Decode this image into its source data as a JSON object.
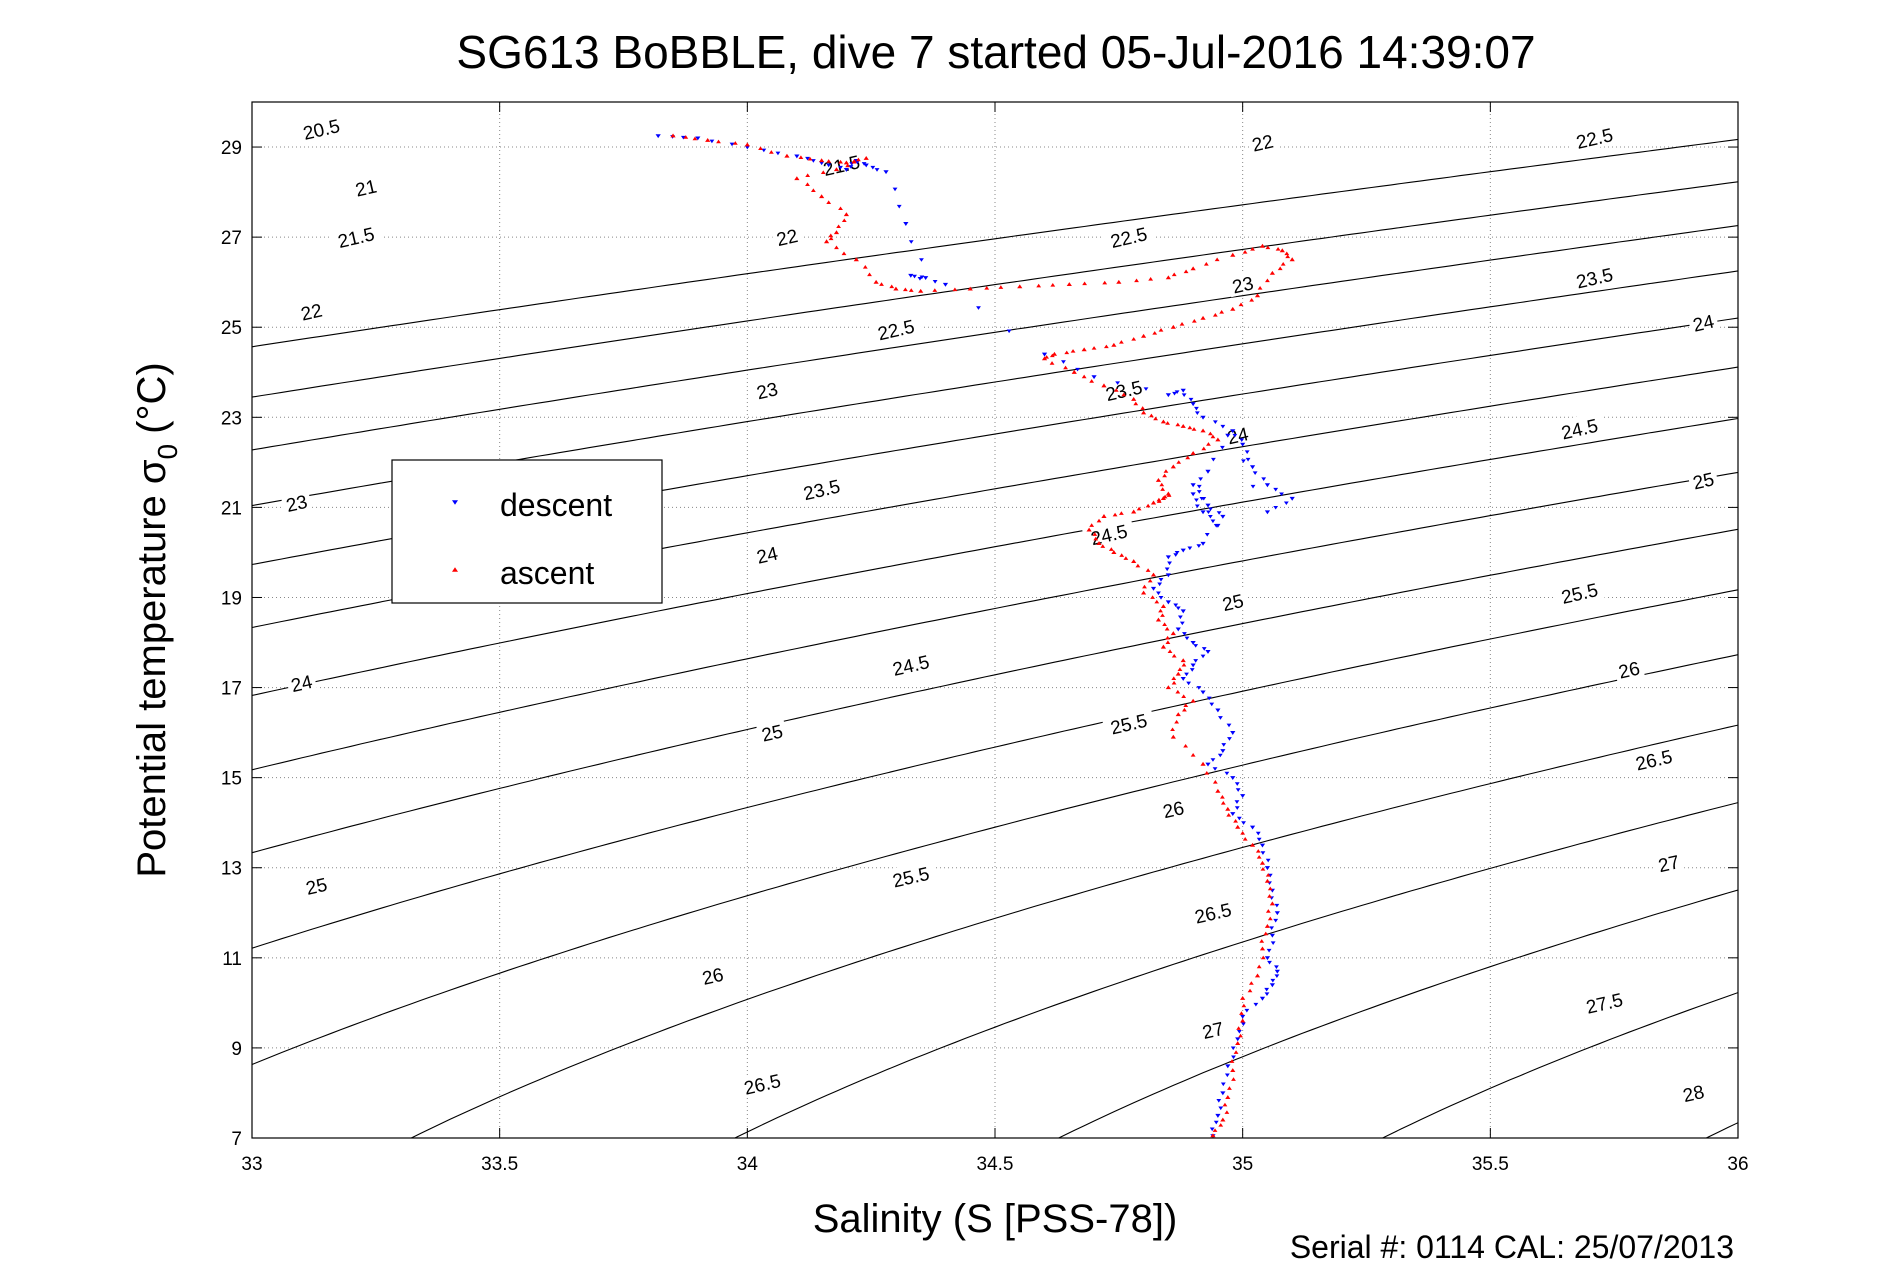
{
  "chart_data": {
    "type": "scatter",
    "title": "SG613 BoBBLE, dive 7 started 05-Jul-2016 14:39:07",
    "xlabel": "Salinity (S [PSS-78])",
    "ylabel_main": "Potential temperature σ",
    "ylabel_sub": "0",
    "ylabel_unit": "(°C)",
    "xlim": [
      33,
      36
    ],
    "ylim": [
      7,
      30
    ],
    "grid": true,
    "xticks": [
      {
        "value": 33,
        "label": "33"
      },
      {
        "value": 33.5,
        "label": "33.5"
      },
      {
        "value": 34,
        "label": "34"
      },
      {
        "value": 34.5,
        "label": "34.5"
      },
      {
        "value": 35,
        "label": "35"
      },
      {
        "value": 35.5,
        "label": "35.5"
      },
      {
        "value": 36,
        "label": "36"
      }
    ],
    "yticks": [
      {
        "value": 7,
        "label": "7"
      },
      {
        "value": 9,
        "label": "9"
      },
      {
        "value": 11,
        "label": "11"
      },
      {
        "value": 13,
        "label": "13"
      },
      {
        "value": 15,
        "label": "15"
      },
      {
        "value": 17,
        "label": "17"
      },
      {
        "value": 19,
        "label": "19"
      },
      {
        "value": 21,
        "label": "21"
      },
      {
        "value": 23,
        "label": "23"
      },
      {
        "value": 25,
        "label": "25"
      },
      {
        "value": 27,
        "label": "27"
      },
      {
        "value": 29,
        "label": "29"
      }
    ],
    "density_contours": {
      "levels": [
        20.5,
        21,
        21.5,
        22,
        22.5,
        23,
        23.5,
        24,
        24.5,
        25,
        25.5,
        26,
        26.5,
        27,
        27.5,
        28
      ],
      "color": "#000000",
      "labels": [
        {
          "text": "20.5",
          "x": 33.14,
          "y": 29.4
        },
        {
          "text": "21",
          "x": 33.23,
          "y": 28.1
        },
        {
          "text": "21.5",
          "x": 33.21,
          "y": 27.0
        },
        {
          "text": "22",
          "x": 33.12,
          "y": 25.35
        },
        {
          "text": "23",
          "x": 33.09,
          "y": 21.1
        },
        {
          "text": "24",
          "x": 33.1,
          "y": 17.1
        },
        {
          "text": "25",
          "x": 33.13,
          "y": 12.6
        },
        {
          "text": "21.5",
          "x": 34.19,
          "y": 28.6
        },
        {
          "text": "22",
          "x": 34.08,
          "y": 27.0
        },
        {
          "text": "22.5",
          "x": 34.3,
          "y": 24.95
        },
        {
          "text": "23",
          "x": 34.04,
          "y": 23.6
        },
        {
          "text": "23.5",
          "x": 34.15,
          "y": 21.4
        },
        {
          "text": "24",
          "x": 34.04,
          "y": 19.95
        },
        {
          "text": "24.5",
          "x": 34.33,
          "y": 17.5
        },
        {
          "text": "25",
          "x": 34.05,
          "y": 16.0
        },
        {
          "text": "25.5",
          "x": 34.33,
          "y": 12.8
        },
        {
          "text": "26",
          "x": 33.93,
          "y": 10.6
        },
        {
          "text": "26.5",
          "x": 34.03,
          "y": 8.2
        },
        {
          "text": "22",
          "x": 35.04,
          "y": 29.1
        },
        {
          "text": "22.5",
          "x": 34.77,
          "y": 27.0
        },
        {
          "text": "23",
          "x": 35.0,
          "y": 25.95
        },
        {
          "text": "23.5",
          "x": 34.76,
          "y": 23.6
        },
        {
          "text": "24",
          "x": 34.99,
          "y": 22.6
        },
        {
          "text": "24.5",
          "x": 34.73,
          "y": 20.4
        },
        {
          "text": "25",
          "x": 34.98,
          "y": 18.9
        },
        {
          "text": "25.5",
          "x": 34.77,
          "y": 16.2
        },
        {
          "text": "26",
          "x": 34.86,
          "y": 14.3
        },
        {
          "text": "26.5",
          "x": 34.94,
          "y": 12.0
        },
        {
          "text": "27",
          "x": 34.94,
          "y": 9.4
        },
        {
          "text": "22.5",
          "x": 35.71,
          "y": 29.2
        },
        {
          "text": "23.5",
          "x": 35.71,
          "y": 26.1
        },
        {
          "text": "24",
          "x": 35.93,
          "y": 25.1
        },
        {
          "text": "24.5",
          "x": 35.68,
          "y": 22.75
        },
        {
          "text": "25",
          "x": 35.93,
          "y": 21.6
        },
        {
          "text": "25.5",
          "x": 35.68,
          "y": 19.1
        },
        {
          "text": "26",
          "x": 35.78,
          "y": 17.4
        },
        {
          "text": "26.5",
          "x": 35.83,
          "y": 15.4
        },
        {
          "text": "27",
          "x": 35.86,
          "y": 13.1
        },
        {
          "text": "27.5",
          "x": 35.73,
          "y": 10.0
        },
        {
          "text": "28",
          "x": 35.91,
          "y": 8.0
        }
      ]
    },
    "legend": {
      "placement": "left",
      "entries": [
        {
          "label": "descent",
          "color": "#0000ff",
          "marker": "triangle-down"
        },
        {
          "label": "ascent",
          "color": "#ff0000",
          "marker": "triangle-up"
        }
      ]
    },
    "series": [
      {
        "name": "descent",
        "color": "#0000ff",
        "marker": "triangle-down",
        "x": [
          33.82,
          33.9,
          34.0,
          34.1,
          34.15,
          34.2,
          34.22,
          34.24,
          34.28,
          34.32,
          34.36,
          34.33,
          34.4,
          34.6,
          34.7,
          34.85,
          34.88,
          34.9,
          34.92,
          34.98,
          35.0,
          35.02,
          35.05,
          35.1,
          35.05,
          34.97,
          34.93,
          34.9,
          34.92,
          34.95,
          34.9,
          34.93,
          34.96,
          34.92,
          34.88,
          34.85,
          34.85,
          34.82,
          34.85,
          34.88,
          34.87,
          34.9,
          34.93,
          34.9,
          34.88,
          34.92,
          34.95,
          34.98,
          34.96,
          34.93,
          34.98,
          35.0,
          34.98,
          35.02,
          35.04,
          35.05,
          35.06,
          35.07,
          35.06,
          35.05,
          35.07,
          35.06,
          35.04,
          35.0,
          34.99,
          34.97,
          34.96,
          34.95,
          34.94
        ],
        "y": [
          29.25,
          29.2,
          29.0,
          28.8,
          28.65,
          28.5,
          28.7,
          28.6,
          28.45,
          27.3,
          26.1,
          26.15,
          25.95,
          24.4,
          23.9,
          23.5,
          23.6,
          23.3,
          23.0,
          22.7,
          22.4,
          21.9,
          21.5,
          21.2,
          20.9,
          22.6,
          21.8,
          21.3,
          20.9,
          20.6,
          21.5,
          21.05,
          20.8,
          20.2,
          20.05,
          19.9,
          19.5,
          19.2,
          18.9,
          18.7,
          18.3,
          18.0,
          17.8,
          17.5,
          17.2,
          16.9,
          16.5,
          16.0,
          15.6,
          15.3,
          15.0,
          14.6,
          14.2,
          13.9,
          13.5,
          13.0,
          12.5,
          12.0,
          11.5,
          11.0,
          10.7,
          10.4,
          10.1,
          9.7,
          9.2,
          8.6,
          8.0,
          7.5,
          7.05
        ]
      },
      {
        "name": "ascent",
        "color": "#ff0000",
        "marker": "triangle-up",
        "x": [
          33.85,
          33.92,
          34.0,
          34.08,
          34.15,
          34.2,
          34.24,
          34.18,
          34.1,
          34.15,
          34.2,
          34.18,
          34.16,
          34.22,
          34.26,
          34.3,
          34.35,
          34.45,
          34.55,
          34.65,
          34.75,
          34.85,
          34.9,
          34.98,
          35.04,
          35.08,
          35.1,
          35.06,
          35.03,
          34.98,
          34.92,
          34.86,
          34.8,
          34.74,
          34.68,
          34.62,
          34.6,
          34.66,
          34.72,
          34.78,
          34.8,
          34.84,
          34.88,
          34.92,
          34.95,
          34.9,
          34.86,
          34.83,
          34.85,
          34.84,
          34.82,
          34.78,
          34.72,
          34.69,
          34.71,
          34.74,
          34.78,
          34.82,
          34.8,
          34.84,
          34.83,
          34.86,
          34.84,
          34.88,
          34.87,
          34.85,
          34.9,
          34.87,
          34.86,
          34.92,
          34.95,
          34.97,
          34.99,
          35.02,
          35.04,
          35.05,
          35.06,
          35.05,
          35.04,
          35.03,
          35.0,
          35.0,
          34.99,
          34.98,
          34.97,
          34.96,
          34.94
        ],
        "y": [
          29.25,
          29.15,
          29.05,
          28.8,
          28.7,
          28.65,
          28.75,
          28.5,
          28.3,
          27.9,
          27.5,
          27.1,
          26.9,
          26.5,
          26.0,
          25.85,
          25.8,
          25.85,
          25.9,
          25.95,
          26.0,
          26.1,
          26.3,
          26.6,
          26.8,
          26.7,
          26.5,
          26.2,
          25.7,
          25.4,
          25.2,
          25.0,
          24.8,
          24.6,
          24.5,
          24.4,
          24.3,
          24.0,
          23.7,
          23.4,
          23.1,
          22.9,
          22.8,
          22.7,
          22.5,
          22.2,
          21.9,
          21.6,
          21.3,
          21.2,
          21.1,
          20.9,
          20.8,
          20.5,
          20.2,
          20.0,
          19.8,
          19.5,
          19.1,
          18.8,
          18.5,
          18.2,
          17.9,
          17.6,
          17.3,
          17.0,
          16.7,
          16.4,
          15.9,
          15.3,
          14.7,
          14.3,
          13.9,
          13.5,
          13.1,
          12.7,
          12.2,
          11.7,
          11.2,
          10.6,
          10.1,
          9.6,
          9.1,
          8.5,
          7.9,
          7.4,
          7.05
        ]
      }
    ],
    "footer_text": "Serial #: 0114  CAL: 25/07/2013"
  }
}
